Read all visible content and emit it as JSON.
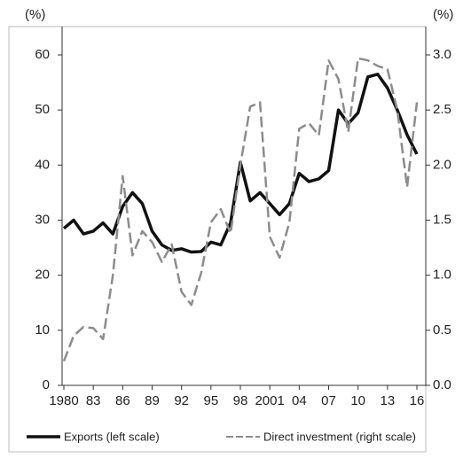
{
  "chart_data": {
    "type": "line",
    "y_unit_label": "(%)",
    "y2_unit_label": "(%)",
    "x": [
      1980,
      1981,
      1982,
      1983,
      1984,
      1985,
      1986,
      1987,
      1988,
      1989,
      1990,
      1991,
      1992,
      1993,
      1994,
      1995,
      1996,
      1997,
      1998,
      1999,
      2000,
      2001,
      2002,
      2003,
      2004,
      2005,
      2006,
      2007,
      2008,
      2009,
      2010,
      2011,
      2012,
      2013,
      2014,
      2015,
      2016
    ],
    "xlim": [
      1980,
      2016
    ],
    "xticks": [
      1980,
      {
        "value": 1983,
        "label": "83"
      },
      {
        "value": 1986,
        "label": "86"
      },
      {
        "value": 1989,
        "label": "89"
      },
      {
        "value": 1992,
        "label": "92"
      },
      {
        "value": 1995,
        "label": "95"
      },
      {
        "value": 1998,
        "label": "98"
      },
      2001,
      {
        "value": 2004,
        "label": "04"
      },
      {
        "value": 2007,
        "label": "07"
      },
      {
        "value": 2010,
        "label": "10"
      },
      {
        "value": 2013,
        "label": "13"
      },
      {
        "value": 2016,
        "label": "16"
      }
    ],
    "ylim": [
      0,
      60
    ],
    "yticks": [
      0,
      10,
      20,
      30,
      40,
      50,
      60
    ],
    "y2lim": [
      0,
      3
    ],
    "y2ticks": [
      {
        "value": 0,
        "label": "0.0"
      },
      0.5,
      {
        "value": 1,
        "label": "1.0"
      },
      1.5,
      {
        "value": 2,
        "label": "2.0"
      },
      2.5,
      {
        "value": 3,
        "label": "3.0"
      }
    ],
    "series": [
      {
        "name": "Exports (left scale)",
        "color": "#111111",
        "dash": false,
        "values": [
          28.5,
          30,
          27.5,
          28,
          29.5,
          27.5,
          32.5,
          35,
          33,
          28,
          25.5,
          24.5,
          24.8,
          24.2,
          24.3,
          26,
          25.5,
          29.5,
          40.5,
          33.5,
          35,
          33,
          31,
          33,
          38.5,
          37,
          37.5,
          39,
          50,
          47.5,
          49.5,
          56,
          56.5,
          54,
          50,
          45.5,
          42
        ]
      },
      {
        "name": "Direct investment (right scale)",
        "color": "#8c8c8c",
        "dash": true,
        "axis": "y2",
        "values": [
          0.22,
          0.45,
          0.53,
          0.52,
          0.42,
          1.0,
          1.9,
          1.18,
          1.4,
          1.3,
          1.12,
          1.28,
          0.85,
          0.73,
          1.02,
          1.48,
          1.6,
          1.38,
          2.0,
          2.53,
          2.57,
          1.35,
          1.16,
          1.48,
          2.33,
          2.38,
          2.27,
          2.95,
          2.78,
          2.3,
          2.97,
          2.95,
          2.9,
          2.87,
          2.5,
          1.8,
          2.57
        ]
      }
    ]
  }
}
